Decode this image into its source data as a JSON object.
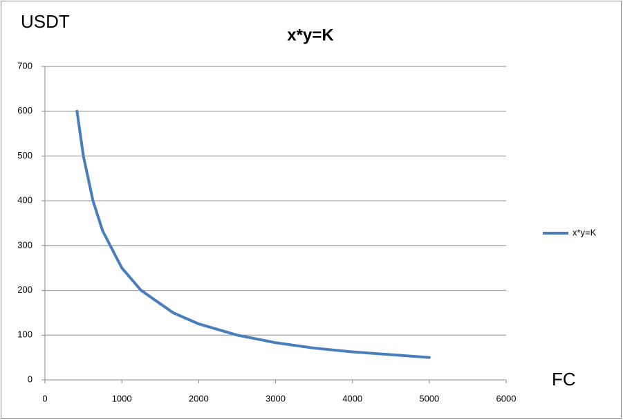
{
  "chart_data": {
    "type": "line",
    "title": "x*y=K",
    "y_label": "USDT",
    "x_label": "FC",
    "x": [
      417,
      500,
      625,
      750,
      1000,
      1250,
      1667,
      2000,
      2500,
      3000,
      3500,
      4000,
      5000
    ],
    "series": [
      {
        "name": "x*y=K",
        "color": "#4a7ebb",
        "values": [
          600,
          500,
          400,
          333,
          250,
          200,
          150,
          125,
          100,
          83,
          71,
          62.5,
          50
        ]
      }
    ],
    "xlim": [
      0,
      6000
    ],
    "xticks": [
      0,
      1000,
      2000,
      3000,
      4000,
      5000,
      6000
    ],
    "ylim": [
      0,
      700
    ],
    "yticks": [
      0,
      100,
      200,
      300,
      400,
      500,
      600,
      700
    ],
    "grid": true,
    "legend": "right"
  }
}
